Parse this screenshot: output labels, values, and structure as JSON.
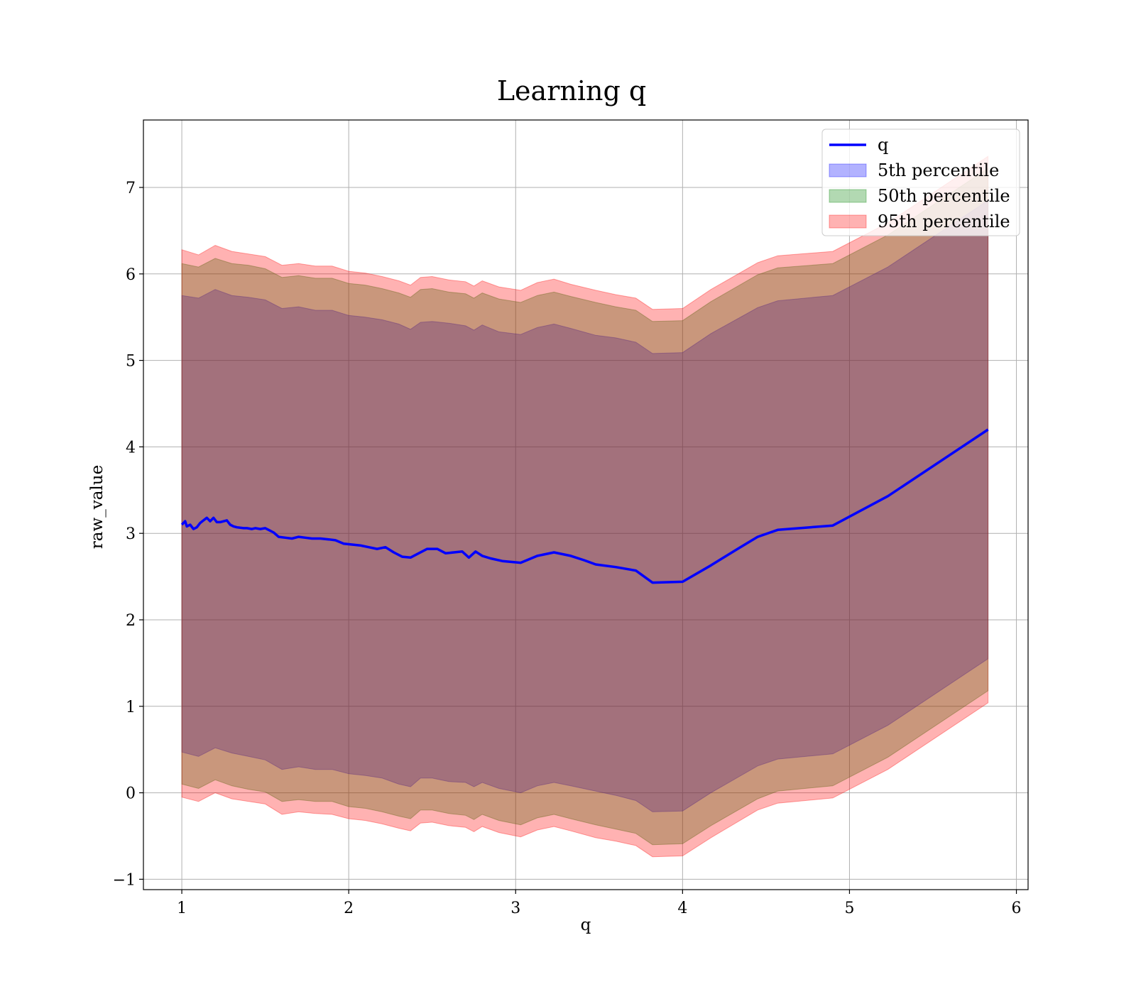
{
  "chart_data": {
    "type": "area",
    "title": "Learning q",
    "xlabel": "q",
    "ylabel": "raw_value",
    "xlim": [
      0.77,
      6.07
    ],
    "ylim": [
      -1.12,
      7.78
    ],
    "xticks": [
      1,
      2,
      3,
      4,
      5,
      6
    ],
    "yticks": [
      -1,
      0,
      1,
      2,
      3,
      4,
      5,
      6,
      7
    ],
    "grid": true,
    "legend_position": "top-right",
    "colors": {
      "line": "#0000ff",
      "band_5": "#0000ff",
      "band_50": "#008000",
      "band_95": "#ff0000"
    },
    "series": [
      {
        "name": "q",
        "kind": "line",
        "x": [
          1.0,
          1.02,
          1.03,
          1.05,
          1.07,
          1.09,
          1.11,
          1.13,
          1.15,
          1.17,
          1.19,
          1.21,
          1.23,
          1.27,
          1.29,
          1.31,
          1.33,
          1.37,
          1.39,
          1.42,
          1.44,
          1.47,
          1.5,
          1.52,
          1.55,
          1.58,
          1.62,
          1.66,
          1.7,
          1.74,
          1.78,
          1.83,
          1.88,
          1.92,
          1.97,
          2.02,
          2.07,
          2.12,
          2.17,
          2.22,
          2.27,
          2.32,
          2.37,
          2.42,
          2.47,
          2.53,
          2.58,
          2.63,
          2.68,
          2.72,
          2.76,
          2.8,
          2.85,
          2.92,
          3.03,
          3.13,
          3.23,
          3.33,
          3.41,
          3.48,
          3.6,
          3.72,
          3.82,
          4.0,
          4.17,
          4.33,
          4.45,
          4.57,
          4.9,
          5.23,
          5.83
        ],
        "y": [
          3.1,
          3.14,
          3.08,
          3.1,
          3.05,
          3.07,
          3.12,
          3.15,
          3.18,
          3.14,
          3.18,
          3.13,
          3.13,
          3.15,
          3.1,
          3.08,
          3.07,
          3.06,
          3.06,
          3.05,
          3.06,
          3.05,
          3.06,
          3.04,
          3.01,
          2.96,
          2.95,
          2.94,
          2.96,
          2.95,
          2.94,
          2.94,
          2.93,
          2.92,
          2.88,
          2.87,
          2.86,
          2.84,
          2.82,
          2.84,
          2.78,
          2.73,
          2.72,
          2.77,
          2.82,
          2.82,
          2.77,
          2.78,
          2.79,
          2.72,
          2.79,
          2.74,
          2.71,
          2.68,
          2.66,
          2.74,
          2.78,
          2.74,
          2.69,
          2.64,
          2.61,
          2.57,
          2.43,
          2.44,
          2.63,
          2.82,
          2.96,
          3.04,
          3.09,
          3.43,
          4.2
        ]
      },
      {
        "name": "5th percentile",
        "kind": "band",
        "x": [
          1.0,
          1.1,
          1.2,
          1.3,
          1.4,
          1.5,
          1.6,
          1.7,
          1.8,
          1.9,
          2.0,
          2.1,
          2.2,
          2.3,
          2.37,
          2.43,
          2.5,
          2.6,
          2.7,
          2.75,
          2.8,
          2.9,
          3.03,
          3.13,
          3.23,
          3.33,
          3.48,
          3.6,
          3.72,
          3.82,
          4.0,
          4.17,
          4.45,
          4.57,
          4.9,
          5.23,
          5.83
        ],
        "lower": [
          0.47,
          0.42,
          0.52,
          0.46,
          0.42,
          0.38,
          0.27,
          0.3,
          0.27,
          0.27,
          0.22,
          0.2,
          0.17,
          0.1,
          0.07,
          0.17,
          0.17,
          0.13,
          0.12,
          0.07,
          0.12,
          0.05,
          0.0,
          0.08,
          0.12,
          0.08,
          0.02,
          -0.03,
          -0.09,
          -0.22,
          -0.21,
          0.0,
          0.31,
          0.39,
          0.45,
          0.78,
          1.55
        ],
        "upper": [
          5.75,
          5.72,
          5.82,
          5.75,
          5.73,
          5.7,
          5.6,
          5.62,
          5.58,
          5.58,
          5.52,
          5.5,
          5.47,
          5.42,
          5.36,
          5.44,
          5.45,
          5.43,
          5.4,
          5.35,
          5.41,
          5.33,
          5.3,
          5.38,
          5.42,
          5.37,
          5.29,
          5.26,
          5.21,
          5.08,
          5.09,
          5.31,
          5.61,
          5.69,
          5.75,
          6.08,
          6.85
        ]
      },
      {
        "name": "50th percentile",
        "kind": "band",
        "x": [
          1.0,
          1.1,
          1.2,
          1.3,
          1.4,
          1.5,
          1.6,
          1.7,
          1.8,
          1.9,
          2.0,
          2.1,
          2.2,
          2.3,
          2.37,
          2.43,
          2.5,
          2.6,
          2.7,
          2.75,
          2.8,
          2.9,
          3.03,
          3.13,
          3.23,
          3.33,
          3.48,
          3.6,
          3.72,
          3.82,
          4.0,
          4.17,
          4.45,
          4.57,
          4.9,
          5.23,
          5.83
        ],
        "lower": [
          0.1,
          0.05,
          0.15,
          0.08,
          0.04,
          0.01,
          -0.1,
          -0.08,
          -0.1,
          -0.1,
          -0.16,
          -0.18,
          -0.22,
          -0.27,
          -0.3,
          -0.2,
          -0.2,
          -0.24,
          -0.26,
          -0.31,
          -0.25,
          -0.32,
          -0.37,
          -0.29,
          -0.25,
          -0.3,
          -0.37,
          -0.42,
          -0.47,
          -0.6,
          -0.59,
          -0.38,
          -0.07,
          0.02,
          0.08,
          0.41,
          1.18
        ],
        "upper": [
          6.12,
          6.08,
          6.18,
          6.12,
          6.1,
          6.06,
          5.96,
          5.98,
          5.95,
          5.95,
          5.89,
          5.87,
          5.83,
          5.78,
          5.73,
          5.82,
          5.83,
          5.79,
          5.77,
          5.72,
          5.78,
          5.71,
          5.67,
          5.75,
          5.79,
          5.74,
          5.67,
          5.62,
          5.58,
          5.45,
          5.46,
          5.68,
          5.99,
          6.07,
          6.12,
          6.45,
          7.22
        ]
      },
      {
        "name": "95th percentile",
        "kind": "band",
        "x": [
          1.0,
          1.1,
          1.2,
          1.3,
          1.4,
          1.5,
          1.6,
          1.7,
          1.8,
          1.9,
          2.0,
          2.1,
          2.2,
          2.3,
          2.37,
          2.43,
          2.5,
          2.6,
          2.7,
          2.75,
          2.8,
          2.9,
          3.03,
          3.13,
          3.23,
          3.33,
          3.48,
          3.6,
          3.72,
          3.82,
          4.0,
          4.17,
          4.45,
          4.57,
          4.9,
          5.23,
          5.83
        ],
        "lower": [
          -0.05,
          -0.1,
          0.0,
          -0.07,
          -0.1,
          -0.13,
          -0.25,
          -0.22,
          -0.24,
          -0.25,
          -0.3,
          -0.32,
          -0.36,
          -0.41,
          -0.44,
          -0.35,
          -0.34,
          -0.38,
          -0.4,
          -0.45,
          -0.39,
          -0.46,
          -0.51,
          -0.43,
          -0.39,
          -0.44,
          -0.52,
          -0.56,
          -0.61,
          -0.74,
          -0.73,
          -0.52,
          -0.2,
          -0.12,
          -0.06,
          0.27,
          1.04
        ],
        "upper": [
          6.28,
          6.22,
          6.33,
          6.26,
          6.23,
          6.2,
          6.1,
          6.12,
          6.09,
          6.09,
          6.03,
          6.01,
          5.97,
          5.92,
          5.87,
          5.96,
          5.97,
          5.93,
          5.91,
          5.86,
          5.92,
          5.85,
          5.81,
          5.9,
          5.94,
          5.88,
          5.81,
          5.76,
          5.72,
          5.59,
          5.6,
          5.82,
          6.13,
          6.21,
          6.26,
          6.59,
          7.36
        ]
      }
    ],
    "legend": [
      "q",
      "5th percentile",
      "50th percentile",
      "95th percentile"
    ]
  }
}
